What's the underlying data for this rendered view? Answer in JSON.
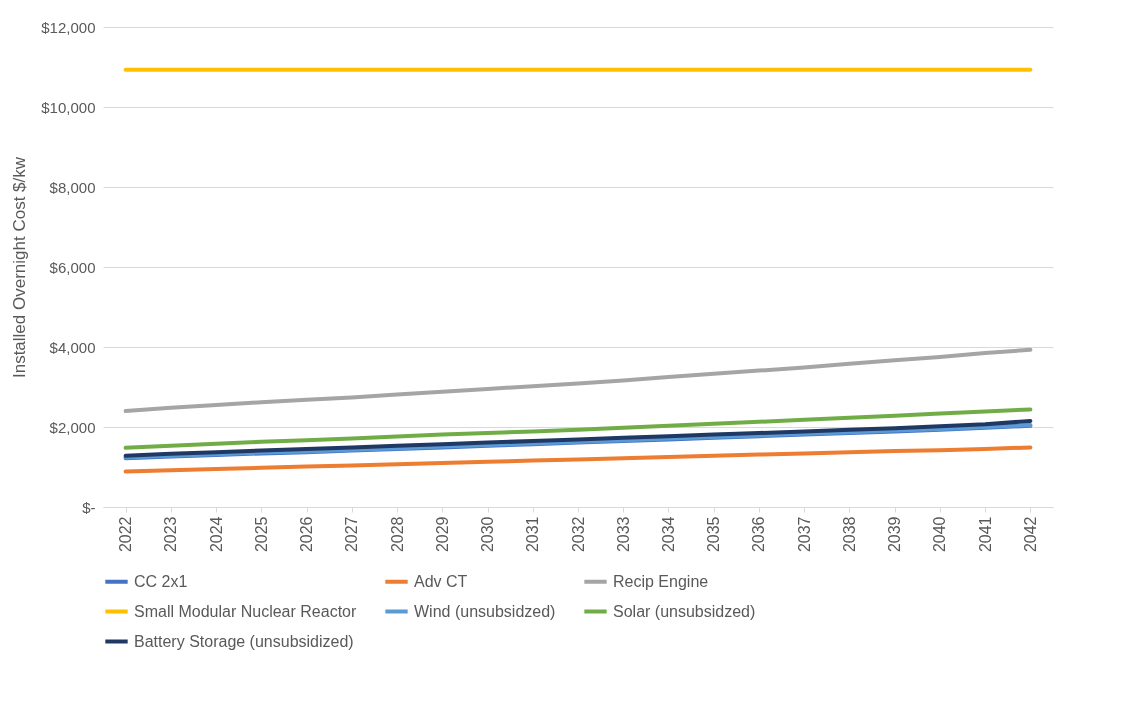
{
  "chart_data": {
    "type": "line",
    "ylabel": "Installed Overnight Cost $/kw",
    "categories": [
      "2022",
      "2023",
      "2024",
      "2025",
      "2026",
      "2027",
      "2028",
      "2029",
      "2030",
      "2031",
      "2032",
      "2033",
      "2034",
      "2035",
      "2036",
      "2037",
      "2038",
      "2039",
      "2040",
      "2041",
      "2042"
    ],
    "ylim": [
      0,
      12000
    ],
    "yticks": [
      {
        "value": 0,
        "label": "$-"
      },
      {
        "value": 2000,
        "label": "$2,000"
      },
      {
        "value": 4000,
        "label": "$4,000"
      },
      {
        "value": 6000,
        "label": "$6,000"
      },
      {
        "value": 8000,
        "label": "$8,000"
      },
      {
        "value": 10000,
        "label": "$10,000"
      },
      {
        "value": 12000,
        "label": "$12,000"
      }
    ],
    "grid": "y",
    "legend": "bottom",
    "series": [
      {
        "name": "CC 2x1",
        "color": "#4472c4",
        "values": [
          1220,
          1260,
          1300,
          1340,
          1370,
          1410,
          1450,
          1490,
          1530,
          1570,
          1610,
          1650,
          1690,
          1730,
          1770,
          1810,
          1850,
          1890,
          1930,
          1980,
          2030
        ]
      },
      {
        "name": "Adv CT",
        "color": "#ed7d31",
        "values": [
          890,
          920,
          950,
          980,
          1010,
          1040,
          1070,
          1100,
          1130,
          1160,
          1190,
          1220,
          1250,
          1280,
          1310,
          1340,
          1370,
          1400,
          1420,
          1450,
          1490
        ]
      },
      {
        "name": "Recip Engine",
        "color": "#a5a5a5",
        "values": [
          2400,
          2480,
          2550,
          2620,
          2680,
          2740,
          2810,
          2880,
          2950,
          3020,
          3090,
          3160,
          3250,
          3330,
          3410,
          3490,
          3580,
          3670,
          3750,
          3850,
          3930
        ]
      },
      {
        "name": "Small Modular Nuclear Reactor",
        "color": "#ffc000",
        "values": [
          10930,
          10930,
          10930,
          10930,
          10930,
          10930,
          10930,
          10930,
          10930,
          10930,
          10930,
          10930,
          10930,
          10930,
          10930,
          10930,
          10930,
          10930,
          10930,
          10930,
          10930
        ]
      },
      {
        "name": "Wind (unsubsidzed)",
        "color": "#5b9bd5",
        "values": [
          1240,
          1280,
          1320,
          1360,
          1390,
          1430,
          1470,
          1510,
          1550,
          1590,
          1630,
          1670,
          1710,
          1750,
          1790,
          1830,
          1870,
          1910,
          1950,
          2000,
          2050
        ]
      },
      {
        "name": "Solar (unsubsidzed)",
        "color": "#70ad47",
        "values": [
          1480,
          1530,
          1580,
          1630,
          1670,
          1710,
          1760,
          1810,
          1850,
          1890,
          1930,
          1980,
          2030,
          2080,
          2130,
          2180,
          2230,
          2280,
          2340,
          2390,
          2440
        ]
      },
      {
        "name": "Battery Storage (unsubsidized)",
        "color": "#203864",
        "values": [
          1280,
          1330,
          1370,
          1410,
          1450,
          1490,
          1530,
          1570,
          1610,
          1650,
          1690,
          1730,
          1770,
          1810,
          1850,
          1890,
          1930,
          1970,
          2020,
          2070,
          2150
        ]
      }
    ]
  }
}
